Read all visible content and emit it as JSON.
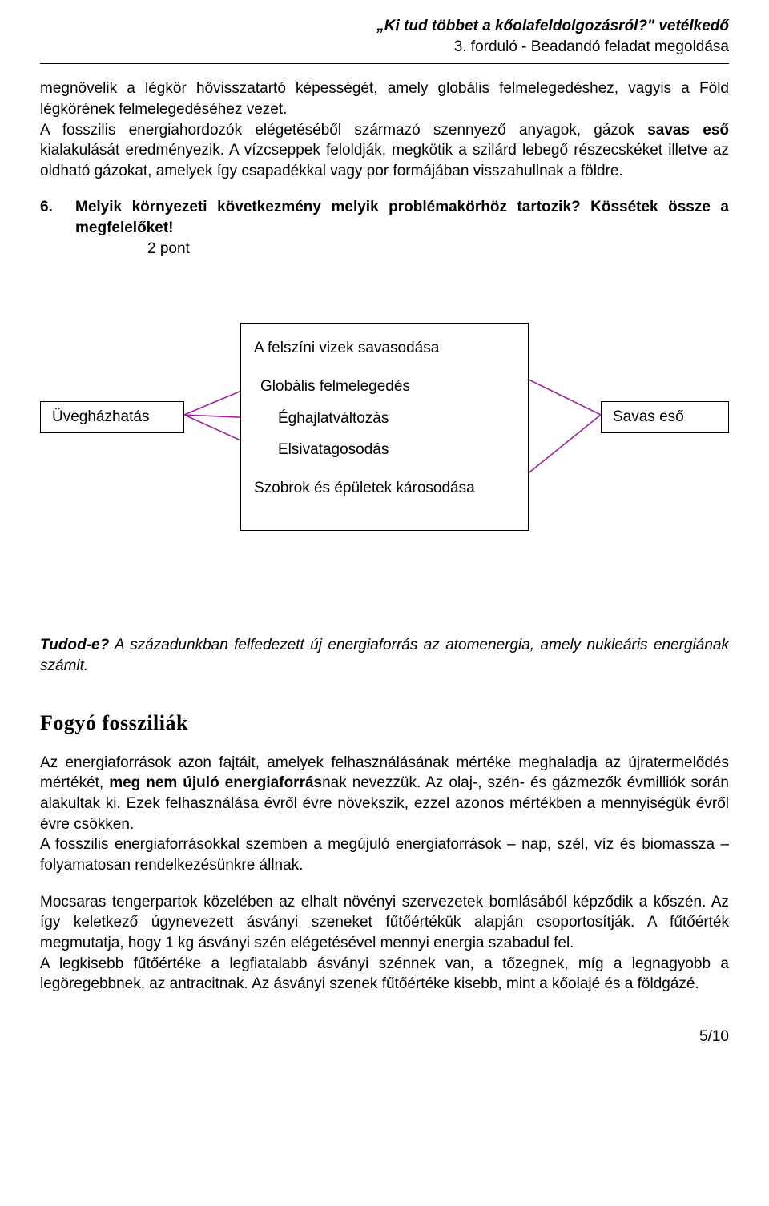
{
  "header": {
    "title": "„Ki tud többet a kőolafeldolgozásról?\" vetélkedő",
    "subtitle": "3. forduló -  Beadandó feladat megoldása"
  },
  "intro_part1": "megnövelik a légkör hővisszatartó képességét, amely globális felmelegedéshez, vagyis a Föld légkörének felmelegedéséhez vezet.",
  "intro_part2a": "A fosszilis energiahordozók elégetéséből származó szennyező anyagok, gázok ",
  "intro_bold1": "savas eső",
  "intro_part2b": " kialakulását eredményezik. A vízcseppek feloldják, megkötik a szilárd lebegő részecskéket illetve az oldható gázokat, amelyek így csapadékkal vagy por formájában visszahullnak a földre.",
  "q6": {
    "num": "6.",
    "text": "Melyik környezeti következmény melyik problémakörhöz tartozik? Kössétek össze a megfelelőket!",
    "points": "2 pont"
  },
  "diagram": {
    "left_box": "Üvegházhatás",
    "right_box": "Savas eső",
    "center_lines": {
      "l1": "A felszíni vizek savasodása",
      "l2": "Globális felmelegedés",
      "l3": "Éghajlatváltozás",
      "l4": "Elsivatagosodás",
      "l5": "Szobrok és épületek károsodása"
    },
    "line_color": "#a020a0",
    "line_width": 1.6
  },
  "tudod_prefix": "Tudod-e?",
  "tudod_text": " A századunkban felfedezett új energiaforrás az atomenergia, amely nukleáris energiának számit.",
  "section2_heading": "Fogyó fossziliák",
  "p1_a": "Az energiaforrások azon fajtáit, amelyek felhasználásának mértéke meghaladja az újratermelődés mértékét, ",
  "p1_bold": "meg nem újuló energiaforrás",
  "p1_b": "nak nevezzük. Az olaj-, szén- és gázmezők évmilliók során alakultak ki. Ezek felhasználása évről évre növekszik, ezzel azonos mértékben a mennyiségük évről évre csökken.",
  "p2": "A fosszilis energiaforrásokkal szemben a megújuló energiaforrások – nap, szél, víz és biomassza – folyamatosan rendelkezésünkre állnak.",
  "p3": "Mocsaras tengerpartok közelében az elhalt növényi szervezetek bomlásából képződik a kőszén. Az így keletkező úgynevezett ásványi szeneket fűtőértékük alapján csoportosítják. A fűtőérték megmutatja, hogy 1 kg ásványi szén elégetésével mennyi energia szabadul fel.",
  "p4": "A legkisebb fűtőértéke a legfiatalabb ásványi szénnek van, a tőzegnek, míg a legnagyobb a legöregebbnek, az antracitnak. Az ásványi szenek fűtőértéke kisebb, mint a kőolajé és a földgázé.",
  "footer": "5/10"
}
